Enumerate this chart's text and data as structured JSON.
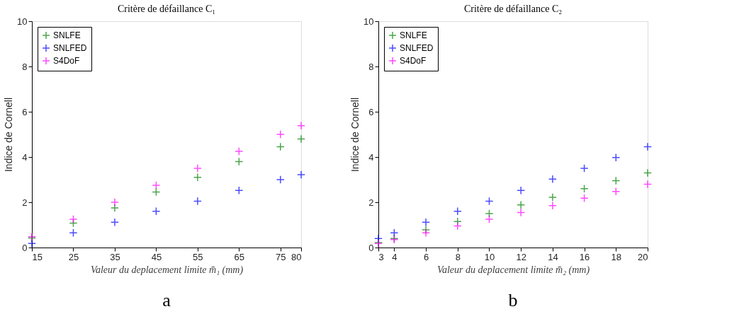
{
  "chart_data": [
    {
      "type": "scatter",
      "title": "Critère de défaillance C₁",
      "xlabel": "Valeur du deplacement limite m̄₁ (mm)",
      "ylabel": "Indice de Cornell",
      "x": [
        15,
        25,
        35,
        45,
        55,
        65,
        75,
        80
      ],
      "series": [
        {
          "name": "SNLFE",
          "color": "#008000",
          "values": [
            0.42,
            1.08,
            1.75,
            2.45,
            3.1,
            3.8,
            4.45,
            4.8
          ]
        },
        {
          "name": "SNLFED",
          "color": "#0000ff",
          "values": [
            0.18,
            0.65,
            1.12,
            1.6,
            2.05,
            2.52,
            3.0,
            3.22
          ]
        },
        {
          "name": "S4DoF",
          "color": "#ff00ff",
          "values": [
            0.48,
            1.25,
            2.0,
            2.75,
            3.5,
            4.25,
            5.0,
            5.38
          ]
        }
      ],
      "xlim": [
        15,
        80
      ],
      "xticks": [
        15,
        25,
        35,
        45,
        55,
        65,
        75,
        80
      ],
      "ylim": [
        0,
        10
      ],
      "yticks": [
        0,
        2,
        4,
        6,
        8,
        10
      ],
      "grid": false,
      "legend": "top left",
      "marker": "cross",
      "annotations": [
        "a"
      ]
    },
    {
      "type": "scatter",
      "title": "Critère de défaillance C₂",
      "xlabel": "Valeur du deplacement limite m̄₂ (mm)",
      "ylabel": "Indice de Cornell",
      "x": [
        3,
        4,
        6,
        8,
        10,
        12,
        14,
        16,
        18,
        20
      ],
      "series": [
        {
          "name": "SNLFE",
          "color": "#008000",
          "values": [
            0.22,
            0.4,
            0.78,
            1.15,
            1.5,
            1.88,
            2.22,
            2.6,
            2.95,
            3.3
          ]
        },
        {
          "name": "SNLFED",
          "color": "#0000ff",
          "values": [
            0.4,
            0.65,
            1.12,
            1.6,
            2.05,
            2.52,
            3.02,
            3.5,
            3.98,
            4.45
          ]
        },
        {
          "name": "S4DoF",
          "color": "#ff00ff",
          "values": [
            0.18,
            0.35,
            0.65,
            0.95,
            1.25,
            1.55,
            1.85,
            2.18,
            2.48,
            2.8
          ]
        }
      ],
      "xlim": [
        3,
        20
      ],
      "xticks": [
        3,
        4,
        6,
        8,
        10,
        12,
        14,
        16,
        18,
        20
      ],
      "ylim": [
        0,
        10
      ],
      "yticks": [
        0,
        2,
        4,
        6,
        8,
        10
      ],
      "grid": false,
      "legend": "top left",
      "marker": "cross",
      "annotations": [
        "b"
      ]
    }
  ]
}
